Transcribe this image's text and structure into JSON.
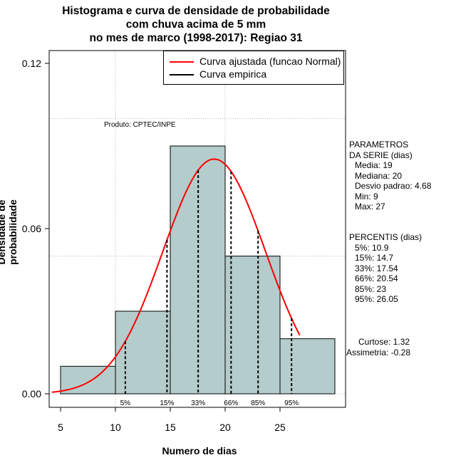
{
  "chart_data": {
    "type": "histogram",
    "title_lines": [
      "Histograma e curva de densidade de probabilidade",
      "com chuva acima de 5 mm",
      "no mes de marco (1998-2017): Regiao 31"
    ],
    "xlabel": "Numero de dias",
    "ylabel": "Densidade de probabilidade",
    "xlim": [
      4,
      31
    ],
    "ylim": [
      0,
      0.125
    ],
    "x_ticks": [
      5,
      10,
      15,
      20,
      25
    ],
    "y_ticks": [
      0.0,
      0.06,
      0.12
    ],
    "y_tick_labels": [
      "0.00",
      "0.06",
      "0.12"
    ],
    "gridlines_x": [
      10,
      20
    ],
    "gridlines_y": [
      0.05,
      0.1
    ],
    "bins": [
      {
        "start": 5,
        "end": 10,
        "density": 0.01
      },
      {
        "start": 10,
        "end": 15,
        "density": 0.03
      },
      {
        "start": 15,
        "end": 20,
        "density": 0.09
      },
      {
        "start": 20,
        "end": 25,
        "density": 0.05
      },
      {
        "start": 25,
        "end": 30,
        "density": 0.02
      }
    ],
    "normal_fit": {
      "mean": 19,
      "sd": 4.68
    },
    "percentile_lines": [
      {
        "label": "5%",
        "x": 10.9
      },
      {
        "label": "15%",
        "x": 14.7
      },
      {
        "label": "33%",
        "x": 17.54
      },
      {
        "label": "66%",
        "x": 20.54
      },
      {
        "label": "85%",
        "x": 23
      },
      {
        "label": "95%",
        "x": 26.05
      }
    ],
    "legend": [
      {
        "label": "Curva ajustada (funcao Normal)",
        "color": "#ff0000"
      },
      {
        "label": "Curva empirica",
        "color": "#000000"
      }
    ],
    "product_label": "Produto: CPTEC/INPE",
    "colors": {
      "bar_fill": "#b5cccc",
      "curve": "#ff0000",
      "grid": "#b4b4b4"
    }
  },
  "stats": {
    "params_title": "PARAMETROS\nDA SERIE (dias)",
    "params": [
      "Media: 19",
      "Mediana: 20",
      "Desvio padrao: 4.68",
      "Min: 9",
      "Max: 27"
    ],
    "percentis_title": "PERCENTIS (dias)",
    "percentis": [
      "5%: 10.9",
      "15%: 14.7",
      "33%: 17.54",
      "66%: 20.54",
      "85%: 23",
      "95%: 26.05"
    ],
    "curtose": "Curtose: 1.32",
    "assimetria": "Assimetria: -0.28"
  }
}
